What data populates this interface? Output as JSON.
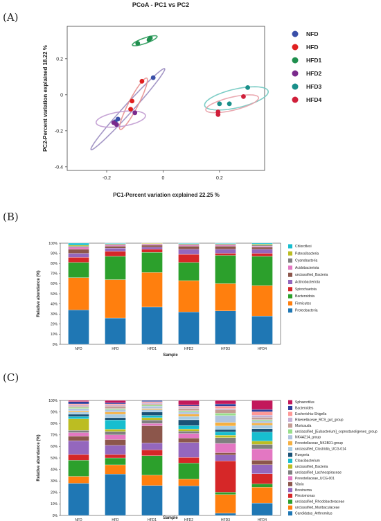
{
  "panels": [
    "(A)",
    "(B)",
    "(C)"
  ],
  "chart_data": [
    {
      "type": "scatter",
      "title": "PCoA - PC1 vs PC2",
      "xlabel": "PC1-Percent variation explained 22.25 %",
      "ylabel": "PC2-Percent variation explained 18.22 %",
      "xlim": [
        -0.34,
        0.36
      ],
      "ylim": [
        -0.42,
        0.38
      ],
      "xticks": [
        "-0.2",
        "0",
        "0.2"
      ],
      "xtick_values": [
        -0.2,
        0,
        0.2
      ],
      "yticks": [
        "-0.4",
        "-0.2",
        "0",
        "0.2"
      ],
      "ytick_values": [
        -0.4,
        -0.2,
        0,
        0.2
      ],
      "grid": false,
      "legend_position": "right",
      "series": [
        {
          "name": "NFD",
          "color": "#3a4fa8",
          "points": [
            [
              -0.035,
              0.095
            ],
            [
              -0.17,
              -0.15
            ],
            [
              -0.16,
              -0.135
            ]
          ],
          "ellipse": {
            "cx": -0.125,
            "cy": -0.08,
            "rx": 0.26,
            "ry": 0.018,
            "angle_deg": 60,
            "stroke": "#9a8cc0"
          }
        },
        {
          "name": "HFD",
          "color": "#e02020",
          "points": [
            [
              -0.075,
              0.075
            ],
            [
              -0.11,
              -0.035
            ],
            [
              -0.115,
              -0.08
            ]
          ],
          "ellipse": {
            "cx": -0.105,
            "cy": -0.05,
            "rx": 0.15,
            "ry": 0.018,
            "angle_deg": 72,
            "stroke": "#e89090"
          }
        },
        {
          "name": "HFD1",
          "color": "#1f8f4e",
          "points": [
            [
              -0.05,
              0.305
            ],
            [
              -0.09,
              0.285
            ],
            [
              -0.045,
              0.315
            ]
          ],
          "ellipse": {
            "cx": -0.065,
            "cy": 0.3,
            "rx": 0.05,
            "ry": 0.014,
            "angle_deg": 30,
            "stroke": "#2a9a5a"
          }
        },
        {
          "name": "HFD2",
          "color": "#7a2a8c",
          "points": [
            [
              -0.175,
              -0.155
            ],
            [
              -0.165,
              -0.165
            ],
            [
              -0.1,
              -0.1
            ]
          ],
          "ellipse": {
            "cx": -0.15,
            "cy": -0.135,
            "rx": 0.09,
            "ry": 0.04,
            "angle_deg": 15,
            "stroke": "#c09ad0"
          }
        },
        {
          "name": "HFD3",
          "color": "#1a8f8a",
          "points": [
            [
              0.2,
              -0.05
            ],
            [
              0.235,
              -0.05
            ],
            [
              0.3,
              0.04
            ]
          ],
          "ellipse": {
            "cx": 0.26,
            "cy": -0.02,
            "rx": 0.12,
            "ry": 0.05,
            "angle_deg": 22,
            "stroke": "#6fc8c0"
          }
        },
        {
          "name": "HFD4",
          "color": "#d01f3a",
          "points": [
            [
              0.195,
              -0.095
            ],
            [
              0.195,
              -0.11
            ],
            [
              0.285,
              -0.01
            ]
          ],
          "ellipse": {
            "cx": 0.245,
            "cy": -0.05,
            "rx": 0.1,
            "ry": 0.035,
            "angle_deg": 22,
            "stroke": "#e8a0a8"
          }
        }
      ]
    },
    {
      "type": "bar",
      "stacked": true,
      "xlabel": "Sample",
      "ylabel": "Relative abundance (%)",
      "ylim": [
        0,
        100
      ],
      "yticks": [
        "0%",
        "10%",
        "20%",
        "30%",
        "40%",
        "50%",
        "60%",
        "70%",
        "80%",
        "90%",
        "100%"
      ],
      "categories": [
        "NFD",
        "HFD",
        "HFD1",
        "HFD2",
        "HFD3",
        "HFD4"
      ],
      "legend_position": "right",
      "series": [
        {
          "name": "Proteobacteria",
          "color": "#1f77b4",
          "values": [
            34,
            26,
            37,
            32,
            33,
            28
          ]
        },
        {
          "name": "Firmicutes",
          "color": "#ff7f0e",
          "values": [
            32,
            38,
            34,
            31,
            27,
            30
          ]
        },
        {
          "name": "Bacteroidota",
          "color": "#2ca02c",
          "values": [
            15,
            23,
            20,
            18,
            28,
            29
          ]
        },
        {
          "name": "Spirochaetota",
          "color": "#d62728",
          "values": [
            5,
            5,
            3,
            8,
            2,
            3
          ]
        },
        {
          "name": "Actinobacteriota",
          "color": "#9467bd",
          "values": [
            4,
            3,
            2,
            5,
            4,
            4
          ]
        },
        {
          "name": "unclassified_Bacteria",
          "color": "#8c564b",
          "values": [
            4,
            2,
            2,
            3,
            3,
            2
          ]
        },
        {
          "name": "Acidobacteriota",
          "color": "#e377c2",
          "values": [
            2,
            1,
            1,
            1,
            1,
            1
          ]
        },
        {
          "name": "Cyanobacteria",
          "color": "#7f7f7f",
          "values": [
            1,
            1,
            0.5,
            1,
            1,
            1
          ]
        },
        {
          "name": "Patescibacteria",
          "color": "#bcbd22",
          "values": [
            1,
            0.5,
            0.5,
            0.5,
            0.5,
            1
          ]
        },
        {
          "name": "Chloroflexi",
          "color": "#17becf",
          "values": [
            2,
            0.5,
            0,
            0.5,
            0.5,
            1
          ]
        }
      ]
    },
    {
      "type": "bar",
      "stacked": true,
      "xlabel": "Sample",
      "ylabel": "Relative abundance (%)",
      "ylim": [
        0,
        100
      ],
      "yticks": [
        "0%",
        "10%",
        "20%",
        "30%",
        "40%",
        "50%",
        "60%",
        "70%",
        "80%",
        "90%",
        "100%"
      ],
      "categories": [
        "NFD",
        "HFD",
        "HFD1",
        "HFD2",
        "HFD3",
        "HFD4"
      ],
      "legend_position": "right",
      "series": [
        {
          "name": "Candidatus_Arthromitus",
          "color": "#1f77b4",
          "values": [
            28,
            36,
            26,
            26,
            2,
            11
          ]
        },
        {
          "name": "unclassified_Muribaculaceae",
          "color": "#ff7f0e",
          "values": [
            6,
            8,
            9,
            6,
            16,
            14
          ]
        },
        {
          "name": "unclassified_Rhodobacteraceae",
          "color": "#2ca02c",
          "values": [
            14,
            6,
            17,
            14,
            2,
            3
          ]
        },
        {
          "name": "Plesiomonas",
          "color": "#d62728",
          "values": [
            5,
            3,
            5,
            5,
            27,
            9
          ]
        },
        {
          "name": "Brevinema",
          "color": "#9467bd",
          "values": [
            12,
            8,
            6,
            13,
            5,
            8
          ]
        },
        {
          "name": "Vibrio",
          "color": "#8c564b",
          "values": [
            4,
            5,
            15,
            4,
            2,
            4
          ]
        },
        {
          "name": "Prevotellaceae_UCG-001",
          "color": "#e377c2",
          "values": [
            3,
            4,
            2,
            4,
            8,
            10
          ]
        },
        {
          "name": "unclassified_Lachnospiraceae",
          "color": "#7f7f7f",
          "values": [
            2,
            3,
            3,
            2,
            5,
            4
          ]
        },
        {
          "name": "unclassified_Bacteria",
          "color": "#bcbd22",
          "values": [
            10,
            2,
            2,
            2,
            2,
            3
          ]
        },
        {
          "name": "Cloacibacterium",
          "color": "#17becf",
          "values": [
            2,
            8,
            2,
            3,
            3,
            8
          ]
        },
        {
          "name": "Ruegeria",
          "color": "#1a5276",
          "values": [
            2,
            2,
            3,
            5,
            2,
            3
          ]
        },
        {
          "name": "unclassified_Clostridia_UCG-014",
          "color": "#a9cce3",
          "values": [
            2,
            3,
            2,
            3,
            3,
            3
          ]
        },
        {
          "name": "Prevotellaceae_NK3B31-group",
          "color": "#f5b041",
          "values": [
            1,
            2,
            1,
            2,
            3,
            2
          ]
        },
        {
          "name": "NK4A214_group",
          "color": "#b0c4de",
          "values": [
            2,
            2,
            2,
            2,
            6,
            2
          ]
        },
        {
          "name": "unclassified_[Eubacterium]_coprostanoligenes_group",
          "color": "#98df8a",
          "values": [
            1,
            1,
            1,
            1,
            2,
            1
          ]
        },
        {
          "name": "Muricauda",
          "color": "#c49c94",
          "values": [
            1,
            2,
            1,
            2,
            3,
            2
          ]
        },
        {
          "name": "Rikenellaceae_RC9_gut_group",
          "color": "#c5b0d5",
          "values": [
            1,
            1,
            1,
            1,
            1,
            2
          ]
        },
        {
          "name": "Escherichia-Shigella",
          "color": "#ff9896",
          "values": [
            1,
            1,
            1,
            1,
            2,
            3
          ]
        },
        {
          "name": "Bacteroides",
          "color": "#2c3e9c",
          "values": [
            2,
            1,
            1,
            1,
            2,
            2
          ]
        },
        {
          "name": "Sphaerotilus",
          "color": "#c2185b",
          "values": [
            1,
            2,
            0,
            4,
            3,
            8
          ]
        }
      ]
    }
  ]
}
